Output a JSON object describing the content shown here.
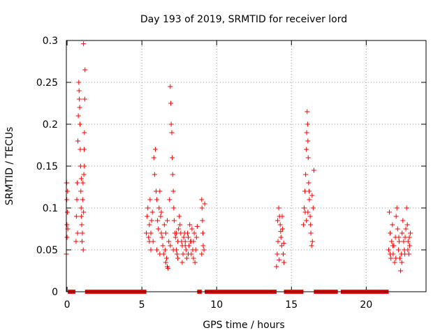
{
  "chart_data": {
    "type": "scatter",
    "title": "Day 193 of 2019, SRMTID for receiver lord",
    "xlabel": "GPS time / hours",
    "ylabel": "SRMTID / TECUs",
    "xlim": [
      -0.05,
      24
    ],
    "ylim": [
      0,
      0.3
    ],
    "grid": true,
    "marker": "+",
    "color": "#ff0000",
    "x_ticks": [
      0,
      5,
      10,
      15,
      20
    ],
    "x_tick_labels": [
      "0",
      "5",
      "10",
      "15",
      "20"
    ],
    "y_ticks": [
      0,
      0.05,
      0.1,
      0.15,
      0.2,
      0.25,
      0.3
    ],
    "y_tick_labels": [
      "0",
      "0.05",
      "0.1",
      "0.15",
      "0.2",
      "0.25",
      "0.3"
    ],
    "zero_value_segments": [
      [
        0.05,
        0.55
      ],
      [
        1.2,
        5.3
      ],
      [
        8.7,
        9.0
      ],
      [
        9.2,
        14.0
      ],
      [
        14.5,
        15.8
      ],
      [
        16.5,
        18.1
      ],
      [
        18.3,
        21.5
      ]
    ],
    "series": [
      {
        "name": "SRMTID",
        "points": [
          [
            -0.05,
            0.045
          ],
          [
            -0.03,
            0.13
          ],
          [
            -0.02,
            0.11
          ],
          [
            -0.01,
            0.08
          ],
          [
            0.0,
            0.065
          ],
          [
            0.02,
            0.095
          ],
          [
            0.03,
            0.12
          ],
          [
            0.05,
            0.075
          ],
          [
            0.6,
            0.06
          ],
          [
            0.62,
            0.09
          ],
          [
            0.65,
            0.11
          ],
          [
            0.68,
            0.13
          ],
          [
            0.7,
            0.07
          ],
          [
            0.72,
            0.18
          ],
          [
            0.75,
            0.21
          ],
          [
            0.78,
            0.25
          ],
          [
            0.8,
            0.24
          ],
          [
            0.82,
            0.23
          ],
          [
            0.84,
            0.22
          ],
          [
            0.86,
            0.2
          ],
          [
            0.88,
            0.17
          ],
          [
            0.9,
            0.15
          ],
          [
            0.92,
            0.12
          ],
          [
            0.94,
            0.1
          ],
          [
            0.96,
            0.09
          ],
          [
            0.98,
            0.08
          ],
          [
            1.0,
            0.06
          ],
          [
            1.02,
            0.07
          ],
          [
            1.04,
            0.11
          ],
          [
            1.06,
            0.13
          ],
          [
            1.08,
            0.05
          ],
          [
            1.1,
            0.095
          ],
          [
            1.12,
            0.14
          ],
          [
            1.14,
            0.17
          ],
          [
            1.16,
            0.19
          ],
          [
            1.18,
            0.23
          ],
          [
            1.2,
            0.265
          ],
          [
            1.1,
            0.296
          ],
          [
            1.15,
            0.15
          ],
          [
            0.95,
            0.135
          ],
          [
            5.3,
            0.07
          ],
          [
            5.35,
            0.09
          ],
          [
            5.4,
            0.1
          ],
          [
            5.45,
            0.065
          ],
          [
            5.5,
            0.08
          ],
          [
            5.55,
            0.11
          ],
          [
            5.6,
            0.05
          ],
          [
            5.65,
            0.085
          ],
          [
            5.7,
            0.095
          ],
          [
            5.75,
            0.06
          ],
          [
            5.8,
            0.16
          ],
          [
            5.85,
            0.14
          ],
          [
            5.9,
            0.17
          ],
          [
            5.95,
            0.12
          ],
          [
            6.0,
            0.11
          ],
          [
            6.05,
            0.085
          ],
          [
            6.1,
            0.075
          ],
          [
            6.15,
            0.1
          ],
          [
            6.2,
            0.12
          ],
          [
            6.25,
            0.09
          ],
          [
            6.3,
            0.07
          ],
          [
            6.35,
            0.065
          ],
          [
            6.4,
            0.055
          ],
          [
            6.45,
            0.045
          ],
          [
            6.5,
            0.08
          ],
          [
            6.55,
            0.05
          ],
          [
            6.6,
            0.035
          ],
          [
            6.65,
            0.04
          ],
          [
            6.7,
            0.03
          ],
          [
            6.75,
            0.028
          ],
          [
            6.8,
            0.06
          ],
          [
            6.85,
            0.11
          ],
          [
            6.9,
            0.245
          ],
          [
            6.93,
            0.225
          ],
          [
            6.96,
            0.2
          ],
          [
            7.0,
            0.19
          ],
          [
            7.03,
            0.16
          ],
          [
            7.06,
            0.14
          ],
          [
            7.1,
            0.12
          ],
          [
            7.13,
            0.1
          ],
          [
            7.16,
            0.085
          ],
          [
            7.2,
            0.07
          ],
          [
            7.25,
            0.065
          ],
          [
            7.3,
            0.05
          ],
          [
            7.35,
            0.045
          ],
          [
            7.4,
            0.06
          ],
          [
            7.45,
            0.075
          ],
          [
            7.5,
            0.09
          ],
          [
            7.55,
            0.08
          ],
          [
            7.6,
            0.07
          ],
          [
            7.65,
            0.06
          ],
          [
            7.7,
            0.055
          ],
          [
            7.75,
            0.045
          ],
          [
            7.8,
            0.065
          ],
          [
            7.85,
            0.07
          ],
          [
            7.9,
            0.06
          ],
          [
            7.95,
            0.05
          ],
          [
            8.0,
            0.04
          ],
          [
            8.05,
            0.07
          ],
          [
            8.1,
            0.065
          ],
          [
            8.15,
            0.055
          ],
          [
            8.2,
            0.08
          ],
          [
            8.25,
            0.06
          ],
          [
            8.3,
            0.045
          ],
          [
            8.35,
            0.075
          ],
          [
            8.4,
            0.05
          ],
          [
            8.45,
            0.06
          ],
          [
            8.5,
            0.07
          ],
          [
            8.55,
            0.035
          ],
          [
            8.6,
            0.05
          ],
          [
            8.65,
            0.065
          ],
          [
            8.7,
            0.078
          ],
          [
            5.5,
            0.06
          ],
          [
            5.6,
            0.07
          ],
          [
            6.0,
            0.05
          ],
          [
            6.2,
            0.045
          ],
          [
            6.3,
            0.095
          ],
          [
            6.6,
            0.07
          ],
          [
            6.7,
            0.085
          ],
          [
            6.9,
            0.055
          ],
          [
            7.1,
            0.05
          ],
          [
            7.3,
            0.07
          ],
          [
            7.4,
            0.04
          ],
          [
            7.7,
            0.035
          ],
          [
            7.9,
            0.055
          ],
          [
            8.1,
            0.045
          ],
          [
            8.3,
            0.06
          ],
          [
            8.45,
            0.04
          ],
          [
            9.0,
            0.11
          ],
          [
            9.02,
            0.1
          ],
          [
            9.05,
            0.085
          ],
          [
            9.08,
            0.07
          ],
          [
            9.1,
            0.055
          ],
          [
            9.15,
            0.05
          ],
          [
            9.2,
            0.105
          ],
          [
            9.0,
            0.045
          ],
          [
            14.0,
            0.03
          ],
          [
            14.05,
            0.045
          ],
          [
            14.1,
            0.06
          ],
          [
            14.15,
            0.1
          ],
          [
            14.2,
            0.09
          ],
          [
            14.25,
            0.08
          ],
          [
            14.3,
            0.065
          ],
          [
            14.35,
            0.055
          ],
          [
            14.4,
            0.075
          ],
          [
            14.45,
            0.045
          ],
          [
            14.5,
            0.035
          ],
          [
            14.38,
            0.09
          ],
          [
            14.28,
            0.072
          ],
          [
            14.18,
            0.038
          ],
          [
            14.08,
            0.085
          ],
          [
            14.48,
            0.058
          ],
          [
            15.8,
            0.08
          ],
          [
            15.85,
            0.1
          ],
          [
            15.9,
            0.12
          ],
          [
            15.95,
            0.14
          ],
          [
            16.0,
            0.17
          ],
          [
            16.02,
            0.19
          ],
          [
            16.05,
            0.215
          ],
          [
            16.08,
            0.2
          ],
          [
            16.1,
            0.18
          ],
          [
            16.12,
            0.16
          ],
          [
            16.15,
            0.13
          ],
          [
            16.2,
            0.11
          ],
          [
            16.25,
            0.09
          ],
          [
            16.3,
            0.07
          ],
          [
            16.35,
            0.055
          ],
          [
            16.4,
            0.06
          ],
          [
            16.45,
            0.1
          ],
          [
            16.5,
            0.145
          ],
          [
            15.92,
            0.095
          ],
          [
            16.0,
            0.085
          ],
          [
            16.18,
            0.12
          ],
          [
            16.28,
            0.08
          ],
          [
            16.38,
            0.115
          ],
          [
            16.1,
            0.095
          ],
          [
            21.5,
            0.05
          ],
          [
            21.55,
            0.095
          ],
          [
            21.6,
            0.07
          ],
          [
            21.65,
            0.04
          ],
          [
            21.7,
            0.06
          ],
          [
            21.75,
            0.08
          ],
          [
            21.8,
            0.045
          ],
          [
            21.85,
            0.055
          ],
          [
            21.9,
            0.035
          ],
          [
            21.95,
            0.065
          ],
          [
            22.0,
            0.09
          ],
          [
            22.05,
            0.1
          ],
          [
            22.1,
            0.075
          ],
          [
            22.15,
            0.05
          ],
          [
            22.2,
            0.06
          ],
          [
            22.25,
            0.04
          ],
          [
            22.3,
            0.025
          ],
          [
            22.35,
            0.045
          ],
          [
            22.4,
            0.07
          ],
          [
            22.45,
            0.085
          ],
          [
            22.5,
            0.06
          ],
          [
            22.55,
            0.05
          ],
          [
            22.6,
            0.065
          ],
          [
            22.65,
            0.075
          ],
          [
            22.7,
            0.1
          ],
          [
            22.75,
            0.08
          ],
          [
            22.8,
            0.06
          ],
          [
            22.85,
            0.045
          ],
          [
            22.9,
            0.055
          ],
          [
            22.95,
            0.07
          ],
          [
            21.6,
            0.045
          ],
          [
            21.78,
            0.055
          ],
          [
            21.98,
            0.04
          ],
          [
            22.18,
            0.065
          ],
          [
            22.38,
            0.035
          ],
          [
            22.58,
            0.045
          ],
          [
            22.78,
            0.05
          ],
          [
            22.88,
            0.065
          ]
        ]
      }
    ]
  }
}
